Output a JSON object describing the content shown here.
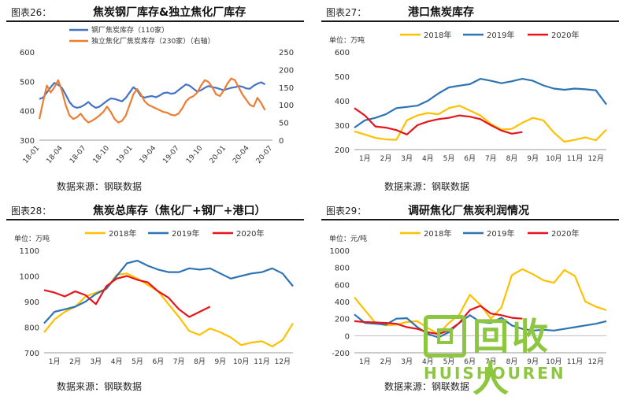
{
  "source_label": "数据来源：钢联数据",
  "watermark": {
    "cn": "回收人",
    "en": "HUISHOUREN"
  },
  "panels": [
    {
      "fig": "图表26：",
      "title": "焦炭钢厂库存&独立焦化厂库存"
    },
    {
      "fig": "图表27：",
      "title": "港口焦炭库存"
    },
    {
      "fig": "图表28：",
      "title": "焦炭总库存（焦化厂+钢厂+港口）"
    },
    {
      "fig": "图表29：",
      "title": "调研焦化厂焦炭利润情况"
    }
  ],
  "colors": {
    "yellow": "#ffc000",
    "blue": "#2e74b5",
    "red": "#e8141b",
    "orange": "#ed7d31",
    "steel": "#4472c4"
  },
  "chart_data": [
    {
      "type": "line",
      "title": "焦炭钢厂库存&独立焦化厂库存",
      "xticks": [
        "18-01",
        "18-04",
        "18-07",
        "18-10",
        "19-01",
        "19-04",
        "19-07",
        "19-10",
        "20-01",
        "20-04",
        "20-07"
      ],
      "x_range": [
        0,
        31
      ],
      "ylim_left": [
        300,
        600
      ],
      "yticks_left": [
        300,
        400,
        500,
        600
      ],
      "ylim_right": [
        0,
        250
      ],
      "yticks_right": [
        0,
        50,
        100,
        150,
        200,
        250
      ],
      "series": [
        {
          "name": "钢厂焦炭库存（110家）",
          "axis": "left",
          "color": "#4472c4",
          "x": [
            0,
            0.5,
            1,
            1.5,
            2,
            2.5,
            3,
            3.5,
            4,
            4.5,
            5,
            5.5,
            6,
            6.5,
            7,
            7.5,
            8,
            8.5,
            9,
            9.5,
            10,
            10.5,
            11,
            11.5,
            12,
            12.5,
            13,
            13.5,
            14,
            14.5,
            15,
            15.5,
            16,
            16.5,
            17,
            17.5,
            18,
            18.5,
            19,
            19.5,
            20,
            20.5,
            21,
            21.5,
            22,
            22.5,
            23,
            23.5,
            24,
            24.5,
            25,
            25.5,
            26,
            26.5,
            27,
            27.5,
            28,
            28.5,
            29,
            29.5,
            30
          ],
          "values": [
            440,
            445,
            462,
            480,
            495,
            488,
            478,
            455,
            430,
            415,
            410,
            413,
            420,
            430,
            418,
            410,
            414,
            424,
            434,
            442,
            440,
            436,
            432,
            444,
            462,
            480,
            470,
            450,
            445,
            448,
            450,
            446,
            452,
            460,
            462,
            458,
            460,
            470,
            480,
            490,
            485,
            475,
            465,
            470,
            478,
            484,
            480,
            478,
            474,
            470,
            474,
            478,
            480,
            484,
            482,
            476,
            475,
            485,
            492,
            497,
            490
          ]
        },
        {
          "name": "独立焦化厂焦炭库存（230家）（右轴）",
          "axis": "right",
          "color": "#ed7d31",
          "x": [
            0,
            0.5,
            1,
            1.5,
            2,
            2.5,
            3,
            3.5,
            4,
            4.5,
            5,
            5.5,
            6,
            6.5,
            7,
            7.5,
            8,
            8.5,
            9,
            9.5,
            10,
            10.5,
            11,
            11.5,
            12,
            12.5,
            13,
            13.5,
            14,
            14.5,
            15,
            15.5,
            16,
            16.5,
            17,
            17.5,
            18,
            18.5,
            19,
            19.5,
            20,
            20.5,
            21,
            21.5,
            22,
            22.5,
            23,
            23.5,
            24,
            24.5,
            25,
            25.5,
            26,
            26.5,
            27,
            27.5,
            28,
            28.5,
            29,
            29.5,
            30
          ],
          "values": [
            60,
            110,
            155,
            135,
            150,
            170,
            140,
            100,
            70,
            60,
            65,
            75,
            60,
            50,
            55,
            62,
            70,
            80,
            95,
            80,
            60,
            50,
            55,
            70,
            100,
            130,
            145,
            130,
            110,
            100,
            95,
            90,
            85,
            80,
            78,
            72,
            70,
            75,
            90,
            110,
            120,
            125,
            135,
            155,
            170,
            165,
            150,
            130,
            125,
            140,
            160,
            175,
            170,
            150,
            130,
            115,
            100,
            95,
            120,
            105,
            85
          ]
        }
      ]
    },
    {
      "type": "line",
      "title": "港口焦炭库存",
      "unit": "单位：万吨",
      "categories": [
        "1月",
        "2月",
        "3月",
        "4月",
        "5月",
        "6月",
        "7月",
        "8月",
        "9月",
        "10月",
        "11月",
        "12月"
      ],
      "x_range": [
        0,
        12
      ],
      "ylim": [
        200,
        600
      ],
      "yticks": [
        200,
        300,
        400,
        500,
        600
      ],
      "series": [
        {
          "name": "2018年",
          "color": "#ffc000",
          "x": [
            0,
            0.5,
            1,
            1.5,
            2,
            2.5,
            3,
            3.5,
            4,
            4.5,
            5,
            5.5,
            6,
            6.5,
            7,
            7.5,
            8,
            8.5,
            9,
            9.5,
            10,
            10.5,
            11,
            11.5,
            12
          ],
          "values": [
            275,
            262,
            248,
            242,
            240,
            320,
            340,
            350,
            345,
            370,
            380,
            360,
            340,
            305,
            282,
            285,
            310,
            330,
            320,
            270,
            232,
            240,
            250,
            238,
            282
          ]
        },
        {
          "name": "2019年",
          "color": "#2e74b5",
          "x": [
            0,
            0.5,
            1,
            1.5,
            2,
            2.5,
            3,
            3.5,
            4,
            4.5,
            5,
            5.5,
            6,
            6.5,
            7,
            7.5,
            8,
            8.5,
            9,
            9.5,
            10,
            10.5,
            11,
            11.5,
            12
          ],
          "values": [
            290,
            320,
            330,
            345,
            370,
            375,
            380,
            400,
            430,
            455,
            462,
            468,
            490,
            482,
            472,
            480,
            490,
            482,
            463,
            450,
            445,
            450,
            447,
            443,
            385
          ]
        },
        {
          "name": "2020年",
          "color": "#e8141b",
          "x": [
            0,
            0.5,
            1,
            1.5,
            2,
            2.5,
            3,
            3.5,
            4,
            4.5,
            5,
            5.5,
            6,
            6.5,
            7,
            7.5,
            8
          ],
          "values": [
            370,
            340,
            295,
            290,
            280,
            262,
            300,
            315,
            325,
            330,
            340,
            335,
            325,
            300,
            278,
            265,
            272
          ]
        }
      ]
    },
    {
      "type": "line",
      "title": "焦炭总库存（焦化厂+钢厂+港口）",
      "unit": "单位：万吨",
      "categories": [
        "1月",
        "2月",
        "3月",
        "4月",
        "5月",
        "6月",
        "7月",
        "8月",
        "9月",
        "10月",
        "11月",
        "12月"
      ],
      "x_range": [
        0,
        12
      ],
      "ylim": [
        700,
        1100
      ],
      "yticks": [
        700,
        800,
        900,
        1000,
        1100
      ],
      "series": [
        {
          "name": "2018年",
          "color": "#ffc000",
          "x": [
            0,
            0.5,
            1,
            1.5,
            2,
            2.5,
            3,
            3.5,
            4,
            4.5,
            5,
            5.5,
            6,
            6.5,
            7,
            7.5,
            8,
            8.5,
            9,
            9.5,
            10,
            10.5,
            11,
            11.5,
            12
          ],
          "values": [
            780,
            830,
            860,
            880,
            920,
            935,
            950,
            1005,
            1010,
            990,
            965,
            940,
            890,
            840,
            785,
            770,
            795,
            780,
            760,
            730,
            740,
            745,
            725,
            750,
            815
          ]
        },
        {
          "name": "2019年",
          "color": "#2e74b5",
          "x": [
            0,
            0.5,
            1,
            1.5,
            2,
            2.5,
            3,
            3.5,
            4,
            4.5,
            5,
            5.5,
            6,
            6.5,
            7,
            7.5,
            8,
            8.5,
            9,
            9.5,
            10,
            10.5,
            11,
            11.5,
            12
          ],
          "values": [
            815,
            860,
            870,
            880,
            900,
            930,
            950,
            1000,
            1050,
            1060,
            1040,
            1025,
            1015,
            1015,
            1030,
            1025,
            1030,
            1010,
            990,
            1000,
            1010,
            1015,
            1030,
            1010,
            960
          ]
        },
        {
          "name": "2020年",
          "color": "#e8141b",
          "x": [
            0,
            0.5,
            1,
            1.5,
            2,
            2.5,
            3,
            3.5,
            4,
            4.5,
            5,
            5.5,
            6,
            6.5,
            7,
            7.5,
            8
          ],
          "values": [
            945,
            935,
            920,
            940,
            925,
            890,
            960,
            990,
            1000,
            985,
            975,
            940,
            915,
            870,
            840,
            860,
            880
          ]
        }
      ]
    },
    {
      "type": "line",
      "title": "调研焦化厂焦炭利润情况",
      "unit": "单位：元/吨",
      "categories": [
        "1月",
        "2月",
        "3月",
        "4月",
        "5月",
        "6月",
        "7月",
        "8月",
        "9月",
        "10月",
        "11月",
        "12月"
      ],
      "x_range": [
        0,
        12
      ],
      "ylim": [
        -200,
        1000
      ],
      "yticks": [
        -200,
        0,
        200,
        400,
        600,
        800,
        1000
      ],
      "series": [
        {
          "name": "2018年",
          "color": "#ffc000",
          "x": [
            0,
            0.5,
            1,
            1.5,
            2,
            2.5,
            3,
            3.5,
            4,
            4.5,
            5,
            5.5,
            6,
            6.5,
            7,
            7.5,
            8,
            8.5,
            9,
            9.5,
            10,
            10.5,
            11,
            11.5,
            12
          ],
          "values": [
            450,
            300,
            150,
            120,
            130,
            160,
            170,
            90,
            20,
            150,
            250,
            480,
            360,
            200,
            330,
            710,
            780,
            720,
            650,
            620,
            770,
            700,
            400,
            340,
            300
          ]
        },
        {
          "name": "2019年",
          "color": "#2e74b5",
          "x": [
            0,
            0.5,
            1,
            1.5,
            2,
            2.5,
            3,
            3.5,
            4,
            4.5,
            5,
            5.5,
            6,
            6.5,
            7,
            7.5,
            8,
            8.5,
            9,
            9.5,
            10,
            10.5,
            11,
            11.5,
            12
          ],
          "values": [
            250,
            150,
            140,
            130,
            200,
            205,
            100,
            20,
            -20,
            40,
            150,
            240,
            160,
            150,
            210,
            120,
            80,
            60,
            70,
            60,
            80,
            100,
            120,
            140,
            170
          ]
        },
        {
          "name": "2020年",
          "color": "#e8141b",
          "x": [
            0,
            0.5,
            1,
            1.5,
            2,
            2.5,
            3,
            3.5,
            4,
            4.5,
            5,
            5.5,
            6,
            6.5,
            7,
            7.5,
            8
          ],
          "values": [
            170,
            160,
            155,
            150,
            140,
            100,
            80,
            40,
            20,
            60,
            150,
            300,
            350,
            260,
            240,
            210,
            200
          ]
        }
      ]
    }
  ]
}
